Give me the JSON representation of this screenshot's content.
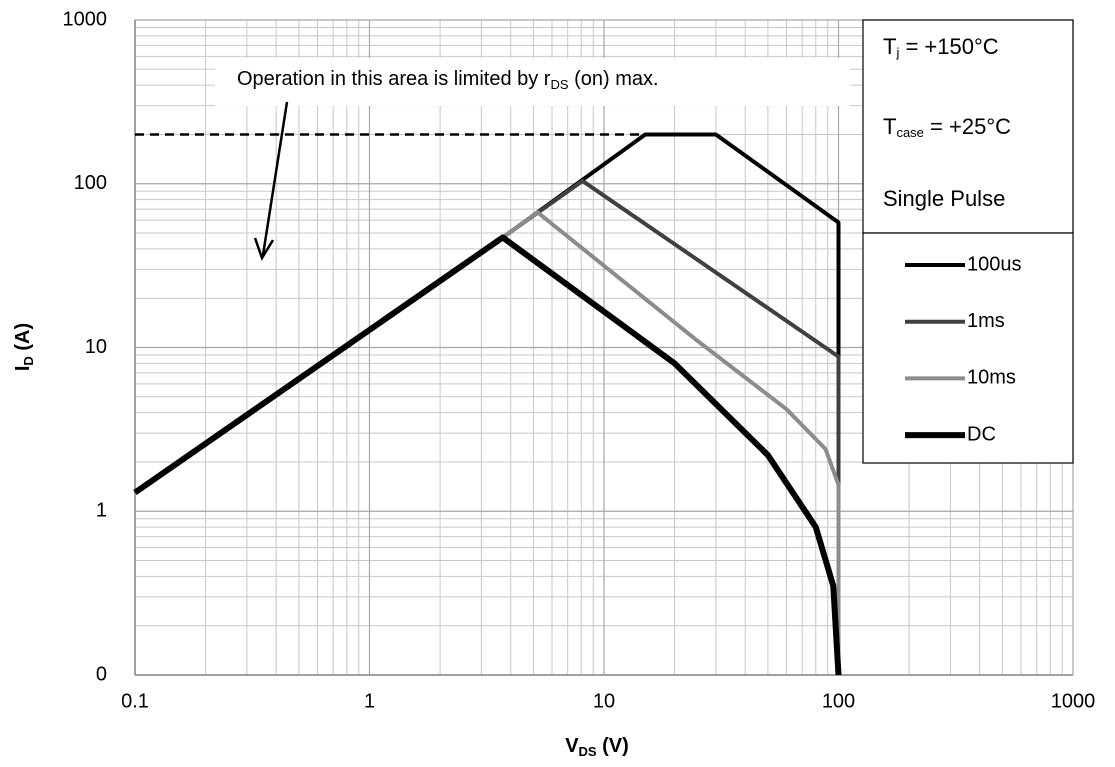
{
  "chart_data": {
    "type": "line",
    "log_x": true,
    "log_y": true,
    "grid": true,
    "xlim": [
      0.1,
      1000
    ],
    "ylim": [
      0.1,
      1000
    ],
    "xticks": [
      0.1,
      1,
      10,
      100,
      1000
    ],
    "yticks": [
      {
        "value": 0.1,
        "label": "0"
      },
      1,
      10,
      100,
      1000
    ],
    "xlabel": [
      "V",
      "DS",
      " (V)"
    ],
    "ylabel": [
      "I",
      "D",
      " (A)"
    ],
    "conditions": [
      [
        "T",
        "j",
        " = +150°C"
      ],
      [
        "T",
        "case",
        " = +25°C"
      ],
      [
        "Single Pulse"
      ]
    ],
    "annotation": [
      "Operation in this area is limited by r",
      "DS",
      " (on) max."
    ],
    "reference_line": {
      "y": 200,
      "x": [
        0.1,
        15
      ],
      "style": "dashed"
    },
    "series": [
      {
        "name": "100us",
        "color": "#000000",
        "line_width": 4,
        "x": [
          3.7,
          15,
          30,
          100,
          100
        ],
        "values": [
          47,
          200,
          200,
          58,
          0.1
        ]
      },
      {
        "name": "1ms",
        "color": "#404040",
        "line_width": 4,
        "x": [
          3.7,
          8.1,
          100,
          100
        ],
        "values": [
          47,
          104,
          8.8,
          0.1
        ]
      },
      {
        "name": "10ms",
        "color": "#8c8c8c",
        "line_width": 4,
        "x": [
          3.7,
          5.2,
          25,
          60,
          88,
          100,
          100
        ],
        "values": [
          47,
          67,
          11,
          4.2,
          2.4,
          1.45,
          0.1
        ]
      },
      {
        "name": "DC",
        "color": "#000000",
        "line_width": 6,
        "x": [
          0.1,
          3.7,
          20,
          50,
          80,
          95,
          100
        ],
        "values": [
          1.3,
          47,
          8,
          2.2,
          0.8,
          0.35,
          0.1
        ]
      }
    ]
  }
}
